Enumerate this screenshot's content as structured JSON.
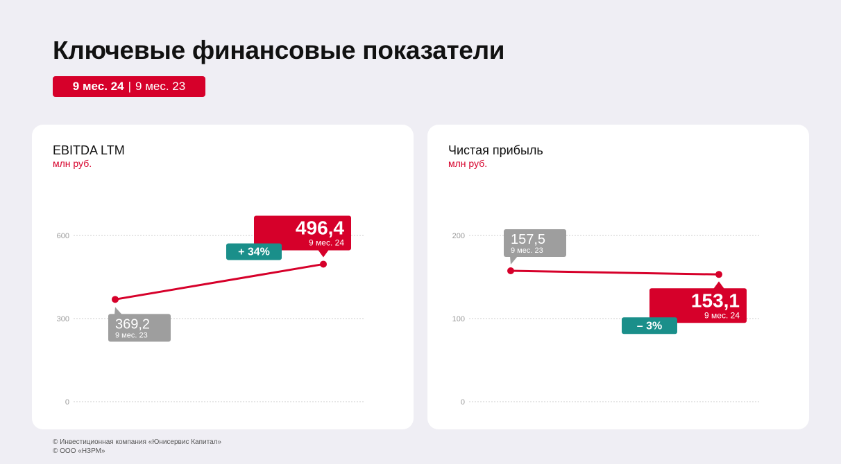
{
  "page": {
    "title": "Ключевые финансовые показатели",
    "period_current": "9 мес. 24",
    "period_separator": "|",
    "period_previous": "9 мес. 23",
    "footer_line1": "© Инвестиционная компания «Юнисервис Капитал»",
    "footer_line2": "© ООО «НЗРМ»"
  },
  "colors": {
    "accent": "#d6002a",
    "previous": "#9e9e9e",
    "change": "#1a8f8a",
    "grid": "#cccccc",
    "background": "#efeef4"
  },
  "chart_data": [
    {
      "type": "line",
      "title": "EBITDA LTM",
      "ylabel": "млн руб.",
      "ylim": [
        0,
        600
      ],
      "yticks": [
        "0",
        "300",
        "600"
      ],
      "grid": true,
      "categories": [
        "9 мес. 23",
        "9 мес. 24"
      ],
      "values": [
        369.2,
        496.4
      ],
      "value_labels": [
        "369,2",
        "496,4"
      ],
      "period_labels": [
        "9 мес. 23",
        "9 мес. 24"
      ],
      "change_label": "+ 34%"
    },
    {
      "type": "line",
      "title": "Чистая прибыль",
      "ylabel": "млн руб.",
      "ylim": [
        0,
        200
      ],
      "yticks": [
        "0",
        "100",
        "200"
      ],
      "grid": true,
      "categories": [
        "9 мес. 23",
        "9 мес. 24"
      ],
      "values": [
        157.5,
        153.1
      ],
      "value_labels": [
        "157,5",
        "153,1"
      ],
      "period_labels": [
        "9 мес. 23",
        "9 мес. 24"
      ],
      "change_label": "– 3%"
    }
  ]
}
